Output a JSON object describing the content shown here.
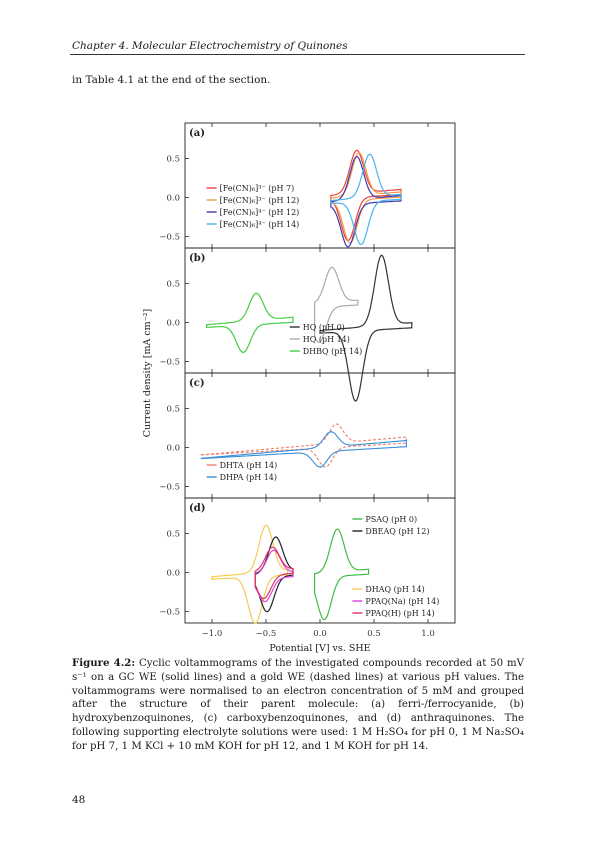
{
  "header": {
    "chapter": "Chapter 4.  Molecular Electrochemistry of Quinones"
  },
  "intro_text": "in Table 4.1 at the end of the section.",
  "figure": {
    "xlabel": "Potential [V] vs. SHE",
    "ylabel": "Current density [mA cm⁻²]",
    "x_ticks": [
      "−1.0",
      "−0.5",
      "0.0",
      "0.5",
      "1.0"
    ],
    "y_ticks": [
      "0.5",
      "0.0",
      "−0.5"
    ],
    "panels": [
      {
        "tag": "(a)",
        "legend": [
          {
            "label": "[Fe(CN)₆]³⁻  (pH 7)",
            "color": "#e8453c"
          },
          {
            "label": "[Fe(CN)₆]³⁻  (pH 12)",
            "color": "#f39a4b"
          },
          {
            "label": "[Fe(CN)₆]⁴⁻  (pH 12)",
            "color": "#3b3bb0"
          },
          {
            "label": "[Fe(CN)₆]⁴⁻  (pH 14)",
            "color": "#4ab3e8"
          }
        ]
      },
      {
        "tag": "(b)",
        "legend": [
          {
            "label": "HQ (pH 0)",
            "color": "#333333"
          },
          {
            "label": "HQ (pH 14)",
            "color": "#aaaaaa"
          },
          {
            "label": "DHBQ (pH 14)",
            "color": "#44cc44"
          }
        ]
      },
      {
        "tag": "(c)",
        "legend": [
          {
            "label": "DHTA (pH 14)",
            "color": "#f08070"
          },
          {
            "label": "DHPA (pH 14)",
            "color": "#3a8fd8"
          }
        ]
      },
      {
        "tag": "(d)",
        "legend_top": [
          {
            "label": "PSAQ (pH 0)",
            "color": "#44bb44"
          },
          {
            "label": "DBEAQ (pH 12)",
            "color": "#222222"
          }
        ],
        "legend_bottom": [
          {
            "label": "DHAQ (pH 14)",
            "color": "#f5cc55"
          },
          {
            "label": "PPAQ(Na) (pH 14)",
            "color": "#dd44dd"
          },
          {
            "label": "PPAQ(H) (pH 14)",
            "color": "#dd3366"
          }
        ]
      }
    ]
  },
  "caption": {
    "label": "Figure 4.2:",
    "text": " Cyclic voltammograms of the investigated compounds recorded at 50 mV s⁻¹ on a GC WE (solid lines) and a gold WE (dashed lines) at various pH values.  The voltammograms were normalised to an electron concentration of 5 mM and grouped after the structure of their parent molecule: (a) ferri-/ferrocyanide, (b) hydroxybenzoquinones, (c) carboxybenzoquinones, and (d) anthraquinones. The following supporting electrolyte solutions were used: 1 M H₂SO₄ for pH 0, 1 M Na₂SO₄ for pH 7, 1 M KCl + 10 mM KOH for pH 12, and 1 M KOH for pH 14."
  },
  "page_number": "48"
}
